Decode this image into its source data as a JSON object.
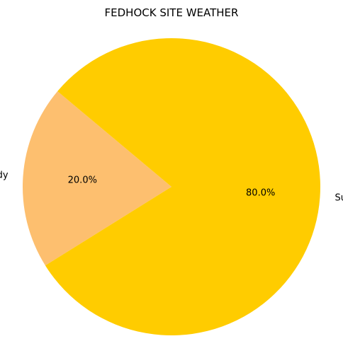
{
  "chart_data": {
    "type": "pie",
    "title": "FEDHOCK SITE WEATHER",
    "slices": [
      {
        "label": "Partly cloudy",
        "value": 20.0,
        "pct_label": "20.0%",
        "color": "#fdbf6f"
      },
      {
        "label": "Sunny",
        "value": 80.0,
        "pct_label": "80.0%",
        "color": "#ffcc00"
      }
    ]
  }
}
